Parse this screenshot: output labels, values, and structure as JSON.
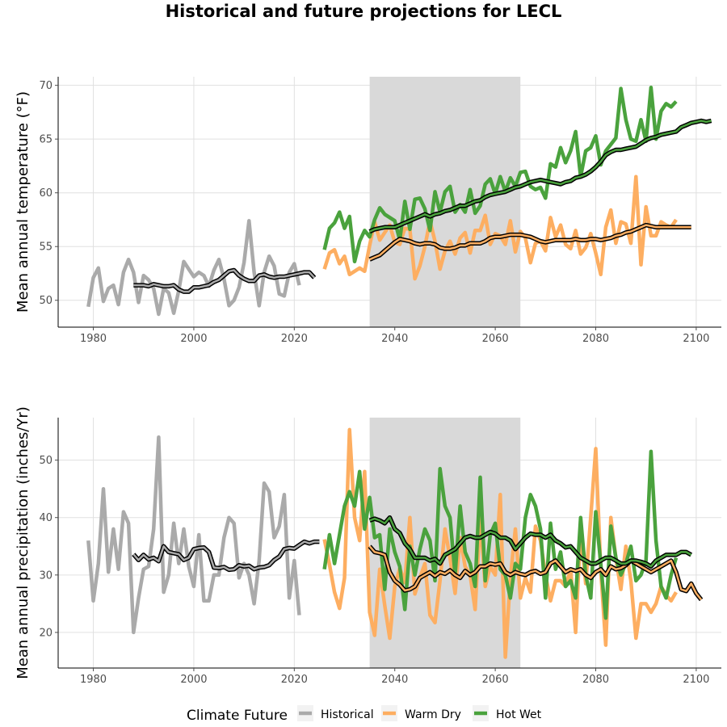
{
  "title": "Historical and future projections for LECL",
  "colors": {
    "historical": "#aaaaaa",
    "warm_dry": "#fdae61",
    "hot_wet": "#4aa23d",
    "smooth": "#000000",
    "shade": "#d9d9d9",
    "grid": "#e0e0e0"
  },
  "legend": {
    "title": "Climate Future",
    "items": [
      {
        "key": "historical",
        "label": "Historical"
      },
      {
        "key": "warm_dry",
        "label": "Warm Dry"
      },
      {
        "key": "hot_wet",
        "label": "Hot Wet"
      }
    ]
  },
  "chart_data": [
    {
      "type": "line",
      "ylabel": "Mean annual temperature (°F)",
      "xlim": [
        1973,
        2105
      ],
      "ylim": [
        47.5,
        70.8
      ],
      "xticks": [
        1980,
        2000,
        2020,
        2040,
        2060,
        2080,
        2100
      ],
      "yticks": [
        50,
        55,
        60,
        65,
        70
      ],
      "shaded_period": [
        2035,
        2065
      ],
      "series": [
        {
          "name": "Historical",
          "key": "historical",
          "x0": 1979,
          "values": [
            49.4,
            52.1,
            53.0,
            49.9,
            51.1,
            51.4,
            49.6,
            52.6,
            53.8,
            52.6,
            49.8,
            52.3,
            51.9,
            51.1,
            48.7,
            51.1,
            50.7,
            48.8,
            50.9,
            53.6,
            52.9,
            52.2,
            52.6,
            52.3,
            51.3,
            52.8,
            53.8,
            52.0,
            49.5,
            50.0,
            51.2,
            53.5,
            57.4,
            52.6,
            49.5,
            52.6,
            54.1,
            53.2,
            50.6,
            50.4,
            52.6,
            53.4,
            51.4
          ]
        },
        {
          "name": "Historical smoothed",
          "key": "smooth",
          "x0": 1988,
          "values": [
            51.4,
            51.4,
            51.4,
            51.3,
            51.5,
            51.4,
            51.3,
            51.3,
            51.4,
            51.0,
            50.8,
            50.8,
            51.2,
            51.2,
            51.3,
            51.4,
            51.7,
            51.9,
            52.3,
            52.7,
            52.8,
            52.3,
            52.0,
            51.8,
            51.8,
            52.3,
            52.4,
            52.2,
            52.1,
            52.2,
            52.2,
            52.3,
            52.4,
            52.5,
            52.6,
            52.6,
            52.1
          ]
        },
        {
          "name": "Warm Dry",
          "key": "warm_dry",
          "x0": 2026,
          "values": [
            52.9,
            54.4,
            54.7,
            53.4,
            54.1,
            52.4,
            52.7,
            53.0,
            52.7,
            55.1,
            57.3,
            55.6,
            56.3,
            57.0,
            55.4,
            55.2,
            56.7,
            56.6,
            52.0,
            53.2,
            55.0,
            57.4,
            55.5,
            52.9,
            54.6,
            55.5,
            54.3,
            55.8,
            56.3,
            54.4,
            56.5,
            56.5,
            57.9,
            55.2,
            56.2,
            56.0,
            55.2,
            57.4,
            54.5,
            56.4,
            55.8,
            53.5,
            55.3,
            55.5,
            54.6,
            57.7,
            55.9,
            57.0,
            55.2,
            54.8,
            56.5,
            54.3,
            54.9,
            56.2,
            54.4,
            52.4,
            56.8,
            58.4,
            55.3,
            57.3,
            57.1,
            55.3,
            61.5,
            53.3,
            58.7,
            56.0,
            56.0,
            57.3,
            57.0,
            56.8,
            57.5
          ]
        },
        {
          "name": "Warm Dry smoothed",
          "key": "warm_dry_smooth",
          "x0": 2035,
          "values": [
            53.8,
            54.0,
            54.2,
            54.6,
            55.0,
            55.4,
            55.7,
            55.6,
            55.5,
            55.3,
            55.2,
            55.3,
            55.3,
            55.2,
            54.9,
            54.8,
            54.8,
            54.9,
            55.1,
            55.1,
            55.3,
            55.3,
            55.3,
            55.5,
            55.8,
            55.9,
            55.9,
            56.0,
            56.1,
            56.1,
            56.1,
            56.0,
            55.9,
            55.7,
            55.5,
            55.4,
            55.5,
            55.6,
            55.6,
            55.6,
            55.6,
            55.7,
            55.6,
            55.6,
            55.7,
            55.7,
            55.6,
            55.7,
            55.8,
            56.0,
            56.1,
            56.3,
            56.4,
            56.6,
            56.8,
            57.0,
            56.9,
            56.8,
            56.8,
            56.8,
            56.8,
            56.8,
            56.8,
            56.8,
            56.8
          ]
        },
        {
          "name": "Hot Wet",
          "key": "hot_wet",
          "x0": 2026,
          "values": [
            54.7,
            56.7,
            57.2,
            58.2,
            56.7,
            57.8,
            53.6,
            55.5,
            56.5,
            55.9,
            57.5,
            58.6,
            58.0,
            57.7,
            57.4,
            55.6,
            59.2,
            56.6,
            59.4,
            59.5,
            58.5,
            56.5,
            60.1,
            58.2,
            60.1,
            60.6,
            58.2,
            58.9,
            58.2,
            60.3,
            58.1,
            58.8,
            60.8,
            61.3,
            59.9,
            61.5,
            60.1,
            61.4,
            60.6,
            61.9,
            62.0,
            60.6,
            60.3,
            60.5,
            59.5,
            62.7,
            62.4,
            64.2,
            62.8,
            63.9,
            65.7,
            61.5,
            63.9,
            64.2,
            65.3,
            62.6,
            63.9,
            64.5,
            65.1,
            69.7,
            66.8,
            65.0,
            64.8,
            66.8,
            64.8,
            69.8,
            65.0,
            67.6,
            68.3,
            68.0,
            68.5
          ]
        },
        {
          "name": "Hot Wet smoothed",
          "key": "hot_wet_smooth",
          "x0": 2035,
          "values": [
            56.4,
            56.6,
            56.7,
            56.8,
            56.8,
            56.8,
            57.0,
            57.2,
            57.4,
            57.6,
            57.8,
            58.0,
            57.8,
            58.0,
            58.1,
            58.3,
            58.4,
            58.6,
            58.8,
            58.8,
            59.0,
            59.2,
            59.3,
            59.6,
            59.8,
            59.9,
            60.0,
            60.1,
            60.3,
            60.5,
            60.6,
            60.8,
            61.0,
            61.1,
            61.2,
            61.1,
            61.0,
            60.9,
            60.8,
            61.0,
            61.1,
            61.4,
            61.5,
            61.7,
            62.0,
            62.4,
            62.9,
            63.5,
            63.8,
            64.0,
            64.0,
            64.1,
            64.2,
            64.3,
            64.6,
            64.9,
            65.1,
            65.2,
            65.4,
            65.5,
            65.6,
            65.7,
            66.1,
            66.3,
            66.5,
            66.6,
            66.7,
            66.6,
            66.7
          ]
        }
      ]
    },
    {
      "type": "line",
      "ylabel": "Mean annual precipitation (inches/Yr)",
      "xlim": [
        1973,
        2105
      ],
      "ylim": [
        13.8,
        57.4
      ],
      "xticks": [
        1980,
        2000,
        2020,
        2040,
        2060,
        2080,
        2100
      ],
      "yticks": [
        20,
        30,
        40,
        50
      ],
      "shaded_period": [
        2035,
        2065
      ],
      "series": [
        {
          "name": "Historical",
          "key": "historical",
          "x0": 1979,
          "values": [
            36.0,
            25.5,
            32.0,
            45.0,
            30.5,
            38.0,
            31.0,
            41.0,
            39.0,
            20.0,
            26.0,
            31.0,
            31.5,
            38.0,
            54.0,
            27.0,
            30.0,
            39.0,
            32.0,
            38.0,
            31.5,
            28.0,
            37.0,
            25.5,
            25.5,
            30.0,
            30.0,
            36.5,
            40.0,
            39.0,
            29.5,
            32.0,
            30.0,
            25.0,
            32.5,
            46.0,
            44.5,
            36.5,
            38.5,
            44.0,
            26.0,
            32.5,
            23.0
          ]
        },
        {
          "name": "Historical smoothed",
          "key": "smooth",
          "x0": 1988,
          "values": [
            33.6,
            32.6,
            33.5,
            32.7,
            33.0,
            32.4,
            35.0,
            34.0,
            33.8,
            33.6,
            32.6,
            33.0,
            34.5,
            34.7,
            34.8,
            34.0,
            31.3,
            31.2,
            31.4,
            30.9,
            31.0,
            31.7,
            31.5,
            31.6,
            31.0,
            31.3,
            31.4,
            31.7,
            32.6,
            33.2,
            34.5,
            34.7,
            34.6,
            35.2,
            35.8,
            35.5,
            35.8,
            35.8
          ]
        },
        {
          "name": "Warm Dry",
          "key": "warm_dry",
          "x0": 2026,
          "values": [
            36.2,
            31.8,
            27.0,
            24.2,
            29.5,
            55.3,
            40.0,
            36.0,
            48.0,
            23.5,
            19.5,
            31.0,
            24.7,
            19.0,
            28.0,
            31.2,
            28.7,
            40.0,
            26.7,
            29.5,
            32.0,
            23.0,
            21.7,
            29.0,
            38.0,
            33.0,
            26.8,
            36.5,
            31.5,
            30.0,
            24.0,
            40.0,
            28.0,
            31.5,
            30.0,
            44.0,
            15.7,
            29.5,
            38.0,
            26.0,
            29.5,
            27.0,
            38.5,
            36.0,
            30.0,
            25.5,
            29.0,
            29.0,
            28.0,
            31.0,
            20.0,
            38.0,
            28.5,
            40.0,
            52.0,
            31.0,
            17.8,
            40.0,
            33.0,
            27.5,
            35.0,
            29.0,
            19.0,
            25.0,
            25.0,
            23.5,
            25.0,
            28.0,
            26.5,
            25.5,
            27.0
          ]
        },
        {
          "name": "Warm Dry smoothed",
          "key": "warm_dry_smooth",
          "x0": 2035,
          "values": [
            35.0,
            34.0,
            33.8,
            33.5,
            30.5,
            29.0,
            28.3,
            27.3,
            27.5,
            28.0,
            29.5,
            30.0,
            30.5,
            29.8,
            30.5,
            30.2,
            30.8,
            30.0,
            29.5,
            30.7,
            30.0,
            30.5,
            31.5,
            31.5,
            32.0,
            31.8,
            32.0,
            30.5,
            30.0,
            30.5,
            30.2,
            30.0,
            30.5,
            30.7,
            30.2,
            30.5,
            32.0,
            32.5,
            31.5,
            30.5,
            31.0,
            30.7,
            31.0,
            30.0,
            29.5,
            30.5,
            31.0,
            30.0,
            31.5,
            31.0,
            31.2,
            31.7,
            32.5,
            32.0,
            31.5,
            31.0,
            30.5,
            31.0,
            31.5,
            32.0,
            32.5,
            30.5,
            27.5,
            27.2,
            28.5,
            26.8,
            25.7
          ]
        },
        {
          "name": "Hot Wet",
          "key": "hot_wet",
          "x0": 2026,
          "values": [
            31.0,
            37.0,
            32.0,
            37.0,
            42.0,
            44.5,
            42.0,
            48.0,
            38.0,
            43.5,
            36.5,
            37.0,
            27.5,
            38.0,
            34.0,
            31.5,
            24.0,
            35.0,
            30.0,
            34.5,
            38.0,
            36.0,
            29.0,
            48.5,
            42.0,
            40.0,
            30.0,
            42.0,
            34.0,
            32.0,
            28.0,
            47.0,
            29.0,
            37.0,
            39.0,
            31.0,
            30.0,
            26.0,
            32.0,
            31.0,
            40.0,
            44.0,
            42.0,
            38.0,
            26.0,
            39.0,
            31.0,
            34.0,
            28.0,
            29.0,
            26.0,
            40.0,
            30.0,
            26.0,
            41.0,
            32.0,
            22.5,
            38.5,
            33.0,
            30.0,
            32.0,
            35.0,
            29.0,
            30.0,
            32.5,
            51.5,
            36.0,
            28.0,
            26.0,
            30.0,
            33.0
          ]
        },
        {
          "name": "Hot Wet smoothed",
          "key": "hot_wet_smooth",
          "x0": 2035,
          "values": [
            39.5,
            39.8,
            39.5,
            39.0,
            40.0,
            38.0,
            37.3,
            35.5,
            34.5,
            33.0,
            33.0,
            33.0,
            32.5,
            32.8,
            32.0,
            33.5,
            34.0,
            34.5,
            35.5,
            36.5,
            36.8,
            36.5,
            36.5,
            37.0,
            37.5,
            37.2,
            36.5,
            36.5,
            36.0,
            34.5,
            35.5,
            36.5,
            37.2,
            37.0,
            37.0,
            36.5,
            37.0,
            36.0,
            35.5,
            34.8,
            35.0,
            34.0,
            33.0,
            32.5,
            32.0,
            32.0,
            32.5,
            33.0,
            33.0,
            32.5,
            32.0,
            32.0,
            32.5,
            32.5,
            32.3,
            32.0,
            31.5,
            32.5,
            33.0,
            33.5,
            33.5,
            33.5,
            34.0,
            34.0,
            33.5
          ]
        }
      ]
    }
  ]
}
